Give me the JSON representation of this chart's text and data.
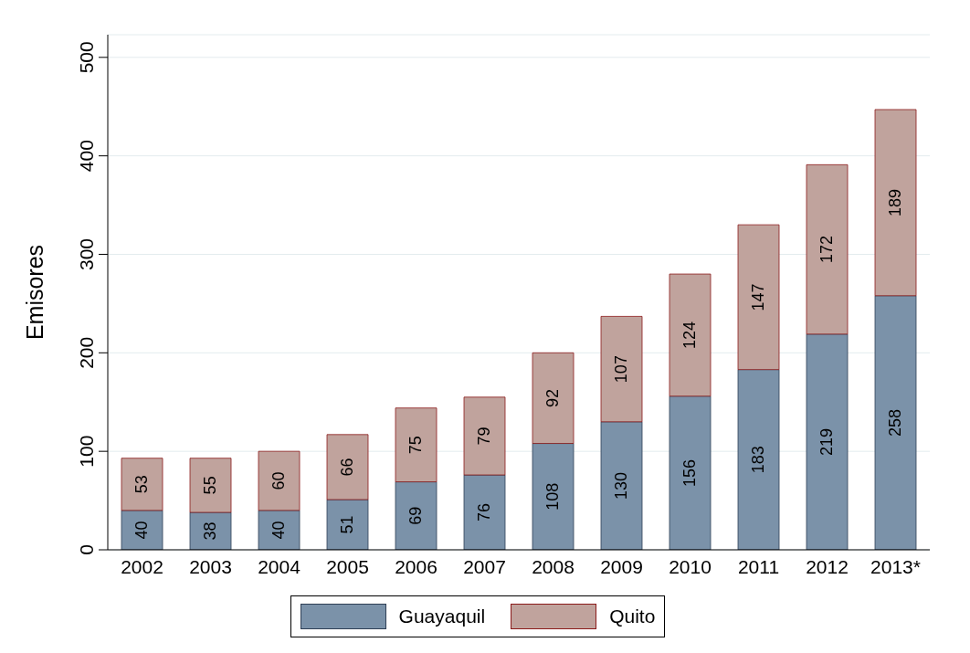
{
  "chart_data": {
    "type": "bar",
    "stacked": true,
    "ylabel": "Emisores",
    "categories": [
      "2002",
      "2003",
      "2004",
      "2005",
      "2006",
      "2007",
      "2008",
      "2009",
      "2010",
      "2011",
      "2012",
      "2013*"
    ],
    "series": [
      {
        "name": "Guayaquil",
        "color": "#7b92a9",
        "values": [
          40,
          38,
          40,
          51,
          69,
          76,
          108,
          130,
          156,
          183,
          219,
          258
        ]
      },
      {
        "name": "Quito",
        "color": "#c0a39d",
        "values": [
          53,
          55,
          60,
          66,
          75,
          79,
          92,
          107,
          124,
          147,
          172,
          189
        ]
      }
    ],
    "ylim": [
      0,
      523
    ],
    "yticks": [
      0,
      100,
      200,
      300,
      400,
      500
    ],
    "grid": "y",
    "legend": "bottom",
    "data_labels": true
  }
}
